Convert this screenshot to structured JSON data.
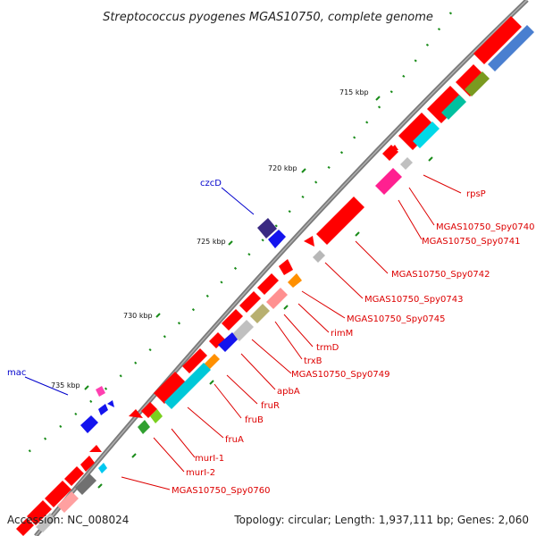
{
  "title": "Streptococcus pyogenes MGAS10750, complete genome",
  "footer": {
    "accession": "Accession: NC_008024",
    "summary": "Topology: circular; Length: 1,937,111 bp; Genes: 2,060"
  },
  "colors": {
    "cds": "#ff0000",
    "backbone": "#808080",
    "ticks": "#1a8c1a",
    "red_label": "#dd0000",
    "blue_label": "#0000cc"
  },
  "kbp_ticks": [
    "715 kbp",
    "720 kbp",
    "725 kbp",
    "730 kbp",
    "735 kbp"
  ],
  "gene_labels_right": [
    "rpsP",
    "MGAS10750_Spy0740",
    "MGAS10750_Spy0741",
    "MGAS10750_Spy0742",
    "MGAS10750_Spy0743",
    "MGAS10750_Spy0745",
    "rimM",
    "trmD",
    "trxB",
    "MGAS10750_Spy0749",
    "apbA",
    "fruR",
    "fruB",
    "fruA",
    "murI-1",
    "murI-2",
    "MGAS10750_Spy0760"
  ],
  "gene_labels_left": [
    "czcD",
    "mac"
  ]
}
